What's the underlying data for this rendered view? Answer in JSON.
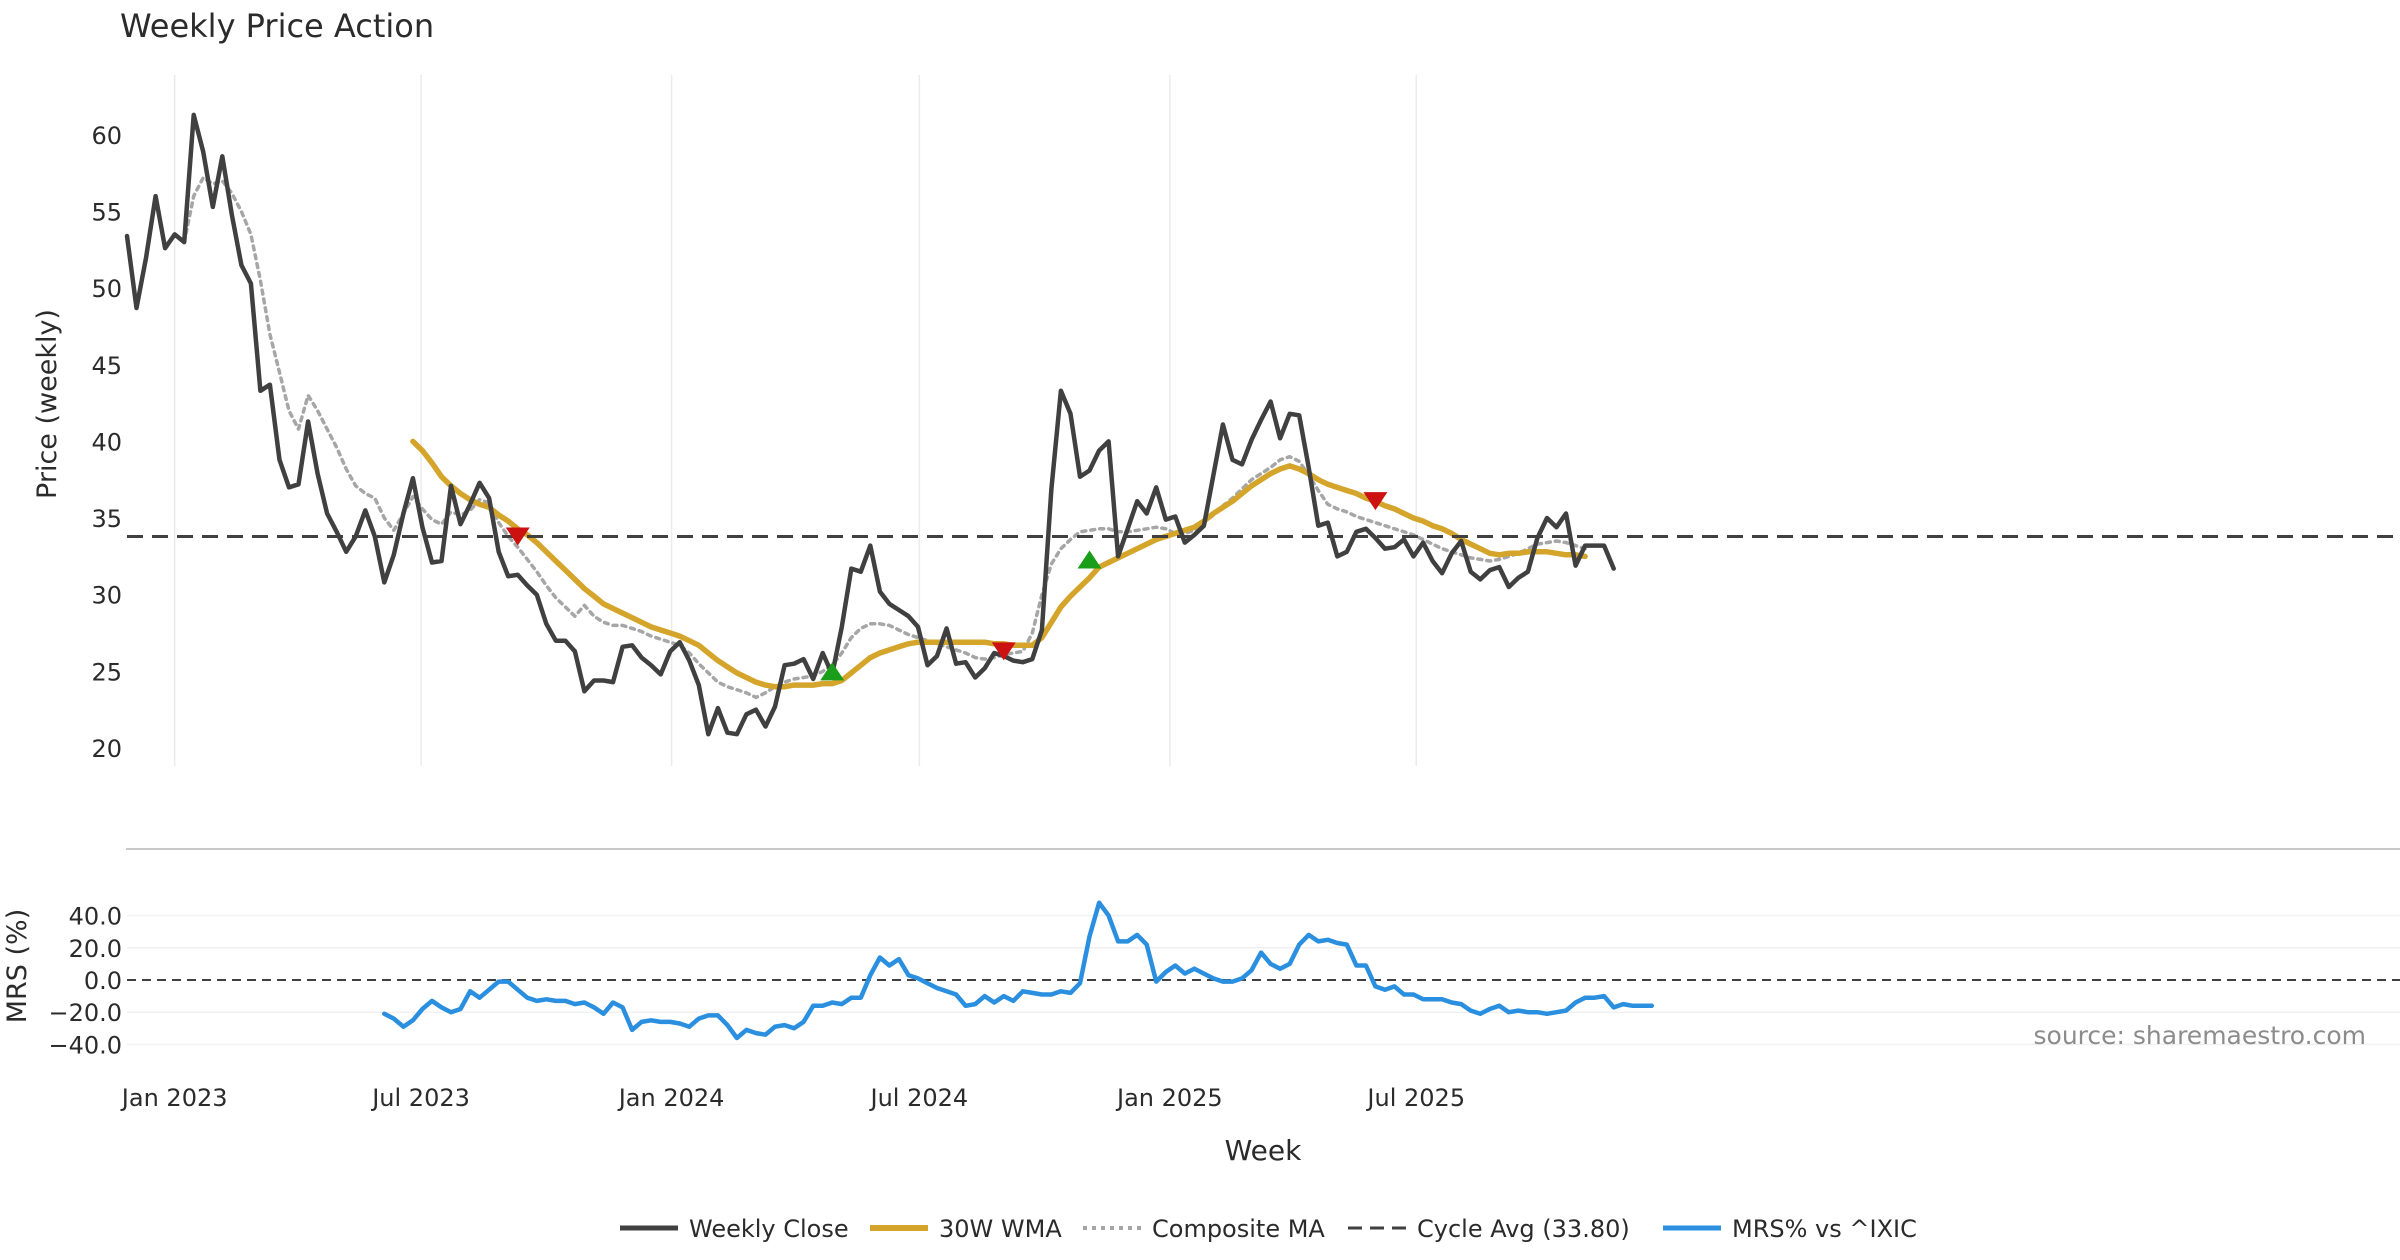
{
  "colors": {
    "close": "#404040",
    "wma": "#d4a52a",
    "composite": "#a6a6a6",
    "cycle": "#404040",
    "mrs": "#2b8fe0",
    "sell": "#cc1111",
    "buy": "#1a9e1a",
    "grid": "#ebebeb",
    "text": "#2b2b2b",
    "source": "#8c8c8c"
  },
  "chart_data": [
    {
      "type": "line",
      "title": "Weekly Price Action",
      "ylabel": "Price (weekly)",
      "ylim": [
        19,
        64
      ],
      "yticks": [
        20,
        25,
        30,
        35,
        40,
        45,
        50,
        55,
        60
      ],
      "grid": "vertical",
      "x_start": "2022-11-27",
      "x_end": "2025-11-16",
      "close": [
        53.4,
        48.7,
        52.0,
        56.0,
        52.6,
        53.5,
        53.0,
        61.3,
        58.9,
        55.3,
        58.6,
        54.8,
        51.5,
        50.3,
        43.3,
        43.7,
        38.8,
        37.0,
        37.2,
        41.3,
        37.9,
        35.3,
        34.1,
        32.8,
        33.8,
        35.5,
        33.8,
        30.8,
        32.6,
        35.3,
        37.6,
        34.4,
        32.1,
        32.2,
        37.1,
        34.6,
        35.9,
        37.3,
        36.3,
        32.8,
        31.2,
        31.3,
        30.6,
        30.0,
        28.1,
        27.0,
        27.0,
        26.3,
        23.7,
        24.4,
        24.4,
        24.3,
        26.6,
        26.7,
        25.9,
        25.4,
        24.8,
        26.3,
        26.9,
        25.7,
        24.1,
        20.9,
        22.6,
        21.0,
        20.9,
        22.2,
        22.5,
        21.4,
        22.7,
        25.4,
        25.5,
        25.8,
        24.5,
        26.2,
        24.8,
        27.9,
        31.7,
        31.5,
        33.2,
        30.2,
        29.4,
        29.0,
        28.6,
        27.9,
        25.4,
        26.0,
        27.8,
        25.5,
        25.6,
        24.6,
        25.2,
        26.2,
        26.0,
        25.7,
        25.6,
        25.8,
        27.7,
        36.9,
        43.3,
        41.8,
        37.7,
        38.1,
        39.4,
        40.0,
        32.5,
        34.3,
        36.1,
        35.3,
        37.0,
        34.9,
        35.1,
        33.4,
        33.9,
        34.5,
        37.8,
        41.1,
        38.8,
        38.5,
        40.1,
        41.4,
        42.6,
        40.2,
        41.8,
        41.7,
        38.3,
        34.5,
        34.7,
        32.5,
        32.8,
        34.1,
        34.3,
        33.7,
        33.0,
        33.1,
        33.6,
        32.5,
        33.4,
        32.2,
        31.4,
        32.7,
        33.5,
        31.5,
        31.0,
        31.6,
        31.8,
        30.5,
        31.1,
        31.5,
        33.7,
        35.0,
        34.4,
        35.3,
        31.9,
        33.2,
        33.2,
        33.2,
        31.7
      ],
      "wma": [
        null,
        null,
        null,
        null,
        null,
        null,
        null,
        null,
        null,
        null,
        null,
        null,
        null,
        null,
        null,
        null,
        null,
        null,
        null,
        null,
        null,
        null,
        null,
        null,
        null,
        null,
        null,
        null,
        null,
        null,
        40.0,
        39.4,
        38.6,
        37.7,
        37.1,
        36.6,
        36.2,
        35.9,
        35.7,
        35.2,
        34.8,
        34.3,
        33.9,
        33.4,
        32.8,
        32.2,
        31.6,
        31.0,
        30.4,
        29.9,
        29.4,
        29.1,
        28.8,
        28.5,
        28.2,
        27.9,
        27.7,
        27.5,
        27.3,
        27.0,
        26.7,
        26.2,
        25.7,
        25.3,
        24.9,
        24.6,
        24.3,
        24.1,
        24.0,
        24.0,
        24.1,
        24.1,
        24.1,
        24.2,
        24.2,
        24.4,
        24.9,
        25.4,
        25.9,
        26.2,
        26.4,
        26.6,
        26.8,
        26.9,
        26.9,
        26.9,
        26.9,
        26.9,
        26.9,
        26.9,
        26.9,
        26.8,
        26.8,
        26.7,
        26.7,
        26.7,
        27.2,
        28.2,
        29.2,
        29.9,
        30.5,
        31.1,
        31.8,
        32.1,
        32.4,
        32.7,
        33.0,
        33.3,
        33.6,
        33.8,
        34.0,
        34.2,
        34.4,
        34.8,
        35.3,
        35.7,
        36.1,
        36.6,
        37.1,
        37.5,
        37.9,
        38.2,
        38.4,
        38.2,
        37.9,
        37.5,
        37.2,
        37.0,
        36.8,
        36.6,
        36.3,
        36.1,
        35.8,
        35.6,
        35.3,
        35.0,
        34.8,
        34.5,
        34.3,
        34.0,
        33.6,
        33.3,
        33.0,
        32.7,
        32.6,
        32.7,
        32.7,
        32.8,
        32.8,
        32.8,
        32.7,
        32.6,
        32.6,
        32.5
      ],
      "composite": [
        null,
        null,
        null,
        null,
        null,
        null,
        53.0,
        56.0,
        57.2,
        56.8,
        57.0,
        56.2,
        55.0,
        53.5,
        50.5,
        47.0,
        44.5,
        42.0,
        40.8,
        43.0,
        42.0,
        40.8,
        39.6,
        38.2,
        37.1,
        36.6,
        36.3,
        35.0,
        34.2,
        35.3,
        36.4,
        35.6,
        34.9,
        34.6,
        35.4,
        35.2,
        35.5,
        36.2,
        36.0,
        34.7,
        33.8,
        33.1,
        32.3,
        31.5,
        30.6,
        29.8,
        29.2,
        28.6,
        29.3,
        28.6,
        28.2,
        28.0,
        28.0,
        27.8,
        27.6,
        27.3,
        27.1,
        26.9,
        26.7,
        26.2,
        25.5,
        24.9,
        24.3,
        24.0,
        23.8,
        23.6,
        23.3,
        23.6,
        24.0,
        24.3,
        24.5,
        24.6,
        24.7,
        25.0,
        25.4,
        26.2,
        27.2,
        27.8,
        28.1,
        28.1,
        28.0,
        27.7,
        27.4,
        27.2,
        27.0,
        26.8,
        26.6,
        26.4,
        26.2,
        25.9,
        25.8,
        25.9,
        26.1,
        26.2,
        26.3,
        27.5,
        30.0,
        32.0,
        33.0,
        33.6,
        34.1,
        34.2,
        34.3,
        34.3,
        34.1,
        34.1,
        34.2,
        34.3,
        34.4,
        34.3,
        34.0,
        34.0,
        34.2,
        34.7,
        35.2,
        35.8,
        36.3,
        36.9,
        37.5,
        37.9,
        38.3,
        38.8,
        39.0,
        38.7,
        37.8,
        36.8,
        35.9,
        35.6,
        35.4,
        35.1,
        34.9,
        34.7,
        34.5,
        34.3,
        34.1,
        33.9,
        33.6,
        33.3,
        33.0,
        32.8,
        32.6,
        32.4,
        32.3,
        32.2,
        32.3,
        32.5,
        32.7,
        33.0,
        33.3,
        33.4,
        33.5,
        33.4,
        33.2,
        33.0
      ],
      "cycle_avg": 33.8,
      "signals": [
        {
          "type": "sell",
          "week": 41,
          "price": 33.8
        },
        {
          "type": "buy",
          "week": 74,
          "price": 25.0
        },
        {
          "type": "sell",
          "week": 92,
          "price": 26.3
        },
        {
          "type": "buy",
          "week": 101,
          "price": 32.3
        },
        {
          "type": "sell",
          "week": 131,
          "price": 36.1
        }
      ]
    },
    {
      "type": "line",
      "ylabel": "MRS (%)",
      "xlabel": "Week",
      "ylim": [
        -40,
        55
      ],
      "yticks": [
        -40.0,
        -20.0,
        0.0,
        20.0,
        40.0
      ],
      "ytick_labels": [
        "−40.0",
        "−20.0",
        "0.0",
        "20.0",
        "40.0"
      ],
      "zero_line": 0,
      "xtick_labels": [
        "Jan 2023",
        "Jul 2023",
        "Jan 2024",
        "Jul 2024",
        "Jan 2025",
        "Jul 2025"
      ],
      "mrs": [
        null,
        null,
        null,
        null,
        null,
        null,
        null,
        null,
        null,
        null,
        null,
        null,
        null,
        null,
        null,
        null,
        null,
        null,
        null,
        null,
        null,
        null,
        null,
        null,
        null,
        null,
        null,
        -21,
        -24,
        -29,
        -25,
        -18,
        -13,
        -17,
        -20,
        -18,
        -7,
        -11,
        -6,
        -1,
        -1,
        -6,
        -11,
        -13,
        -12,
        -13,
        -13,
        -15,
        -14,
        -17,
        -21,
        -14,
        -17,
        -31,
        -26,
        -25,
        -26,
        -26,
        -27,
        -29,
        -24,
        -22,
        -22,
        -28,
        -36,
        -31,
        -33,
        -34,
        -29,
        -28,
        -30,
        -26,
        -16,
        -16,
        -14,
        -15,
        -11,
        -11,
        3,
        14,
        9,
        13,
        3,
        1,
        -2,
        -5,
        -7,
        -9,
        -16,
        -15,
        -10,
        -14,
        -10,
        -13,
        -7,
        -8,
        -9,
        -9,
        -7,
        -8,
        -2,
        27,
        48,
        40,
        24,
        24,
        28,
        22,
        -1,
        5,
        9,
        4,
        7,
        4,
        1,
        -1,
        -1,
        1,
        6,
        17,
        10,
        7,
        10,
        22,
        28,
        24,
        25,
        23,
        22,
        9,
        9,
        -4,
        -6,
        -4,
        -9,
        -9,
        -12,
        -12,
        -12,
        -14,
        -15,
        -19,
        -21,
        -18,
        -16,
        -20,
        -19,
        -20,
        -20,
        -21,
        -20,
        -19,
        -14,
        -11,
        -11,
        -10,
        -17,
        -15,
        -16,
        -16,
        -16
      ],
      "annotation": "source: sharemaestro.com"
    }
  ],
  "legend": {
    "placement": "bottom-center",
    "entries": [
      {
        "key": "close",
        "label": "Weekly Close"
      },
      {
        "key": "wma",
        "label": "30W WMA"
      },
      {
        "key": "composite",
        "label": "Composite MA"
      },
      {
        "key": "cycle",
        "label": "Cycle Avg (33.80)"
      },
      {
        "key": "mrs",
        "label": "MRS% vs ^IXIC"
      }
    ]
  }
}
